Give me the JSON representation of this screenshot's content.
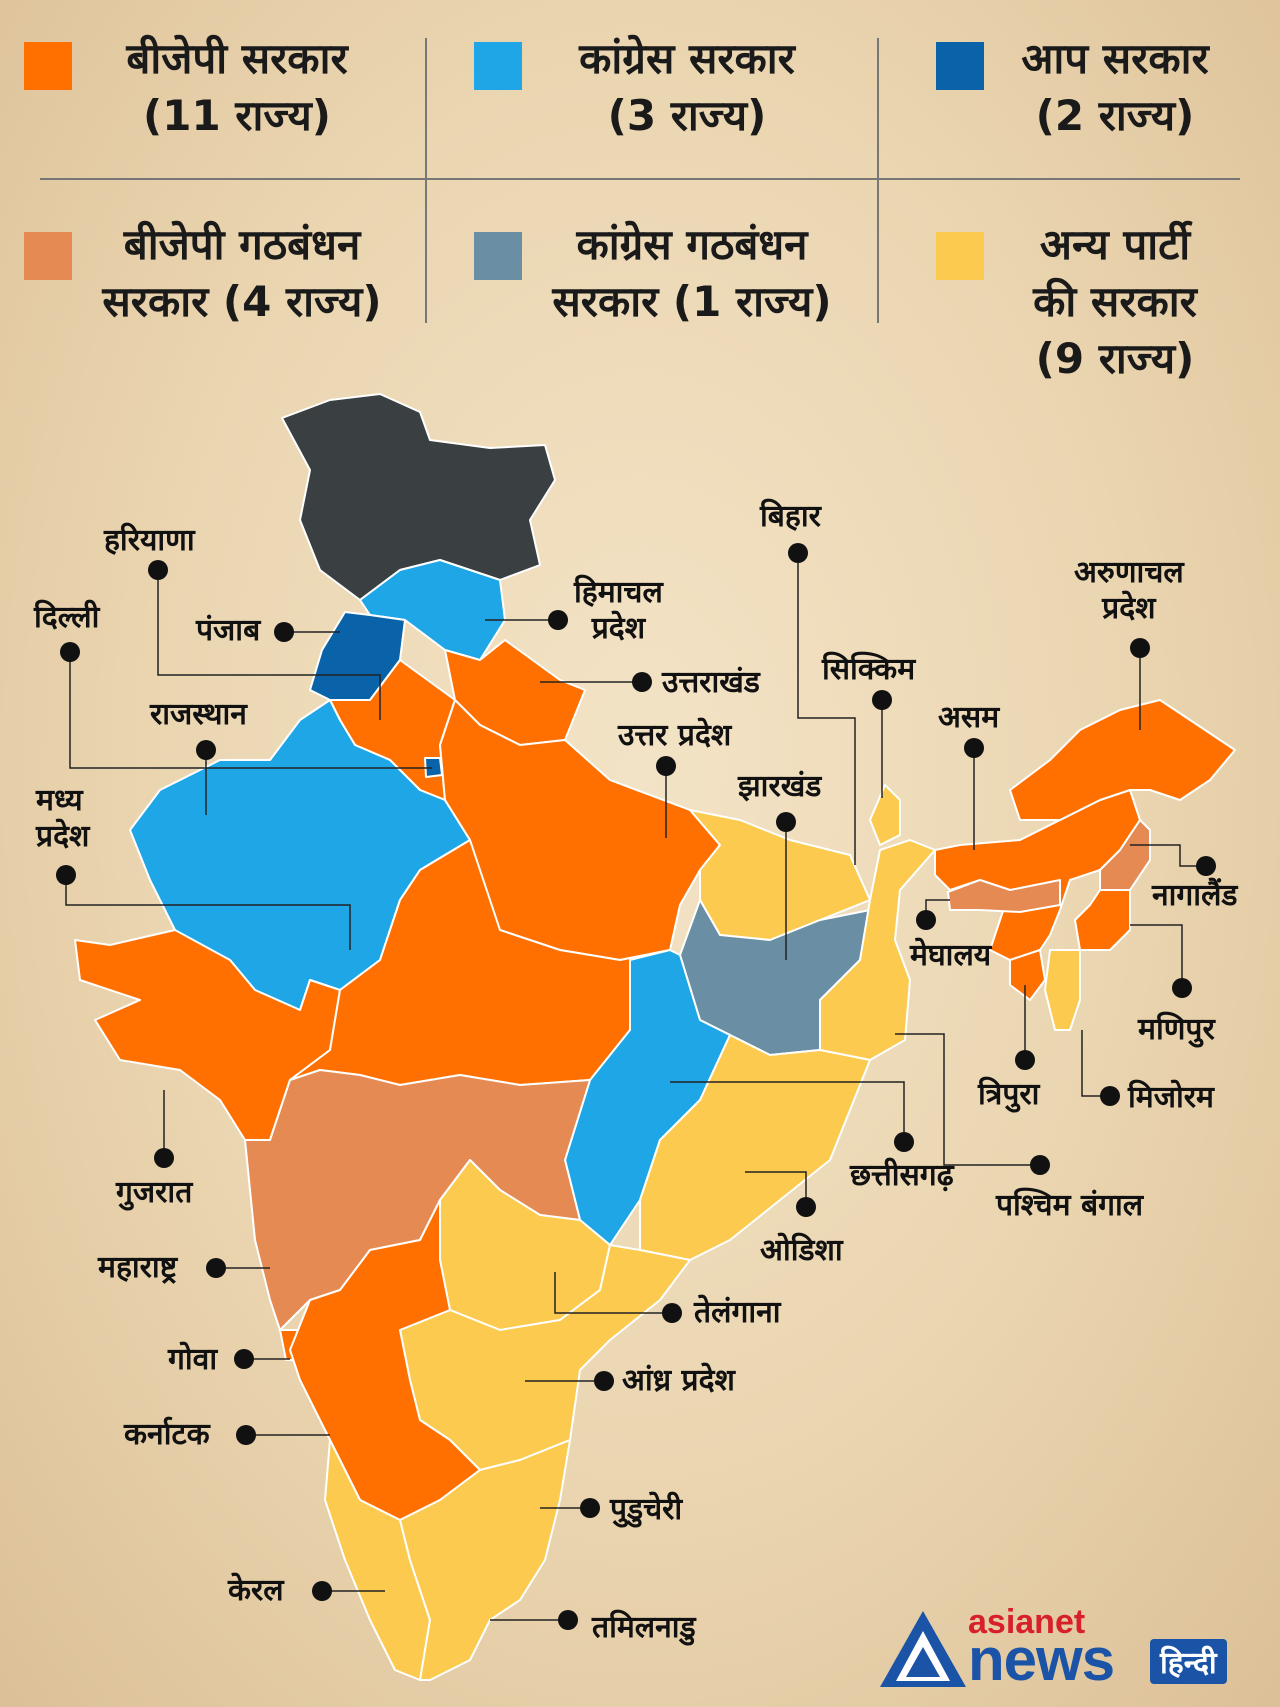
{
  "legend": [
    {
      "id": "bjp",
      "text": "बीजेपी सरकार\n(11 राज्य)",
      "color": "#ff7000"
    },
    {
      "id": "congress",
      "text": "कांग्रेस सरकार\n(3 राज्य)",
      "color": "#1ea6e6"
    },
    {
      "id": "aap",
      "text": "आप सरकार\n(2 राज्य)",
      "color": "#0a63a8"
    },
    {
      "id": "bjp_alliance",
      "text": "बीजेपी गठबंधन\nसरकार (4 राज्य)",
      "color": "#e48a52"
    },
    {
      "id": "congress_alliance",
      "text": "कांग्रेस गठबंधन\nसरकार (1 राज्य)",
      "color": "#6a8ea4"
    },
    {
      "id": "other",
      "text": "अन्य पार्टी\nकी सरकार\n(9 राज्य)",
      "color": "#fcca4e"
    }
  ],
  "union_territory_color": "#3a4042",
  "state_labels": [
    {
      "id": "haryana",
      "text": "हरियाणा"
    },
    {
      "id": "delhi",
      "text": "दिल्ली"
    },
    {
      "id": "punjab",
      "text": "पंजाब"
    },
    {
      "id": "himachal",
      "text": "हिमाचल\nप्रदेश"
    },
    {
      "id": "uttarakhand",
      "text": "उत्तराखंड"
    },
    {
      "id": "bihar",
      "text": "बिहार"
    },
    {
      "id": "arunachal",
      "text": "अरुणाचल\nप्रदेश"
    },
    {
      "id": "sikkim",
      "text": "सिक्किम"
    },
    {
      "id": "assam",
      "text": "असम"
    },
    {
      "id": "rajasthan",
      "text": "राजस्थान"
    },
    {
      "id": "up",
      "text": "उत्तर प्रदेश"
    },
    {
      "id": "jharkhand",
      "text": "झारखंड"
    },
    {
      "id": "mp",
      "text": "मध्य\nप्रदेश"
    },
    {
      "id": "nagaland",
      "text": "नागालैंड"
    },
    {
      "id": "meghalaya",
      "text": "मेघालय"
    },
    {
      "id": "manipur",
      "text": "मणिपुर"
    },
    {
      "id": "tripura",
      "text": "त्रिपुरा"
    },
    {
      "id": "mizoram",
      "text": "मिजोरम"
    },
    {
      "id": "gujarat",
      "text": "गुजरात"
    },
    {
      "id": "chhattisgarh",
      "text": "छत्तीसगढ़"
    },
    {
      "id": "westbengal",
      "text": "पश्चिम बंगाल"
    },
    {
      "id": "odisha",
      "text": "ओडिशा"
    },
    {
      "id": "maharashtra",
      "text": "महाराष्ट्र"
    },
    {
      "id": "telangana",
      "text": "तेलंगाना"
    },
    {
      "id": "goa",
      "text": "गोवा"
    },
    {
      "id": "andhra",
      "text": "आंध्र प्रदेश"
    },
    {
      "id": "karnataka",
      "text": "कर्नाटक"
    },
    {
      "id": "puducherry",
      "text": "पुडुचेरी"
    },
    {
      "id": "kerala",
      "text": "केरल"
    },
    {
      "id": "tamilnadu",
      "text": "तमिलनाडु"
    }
  ],
  "logo": {
    "asianet": "asianet",
    "news": "news",
    "hindi": "हिन्दी",
    "red": "#d8202a",
    "blue": "#1b54a7"
  }
}
